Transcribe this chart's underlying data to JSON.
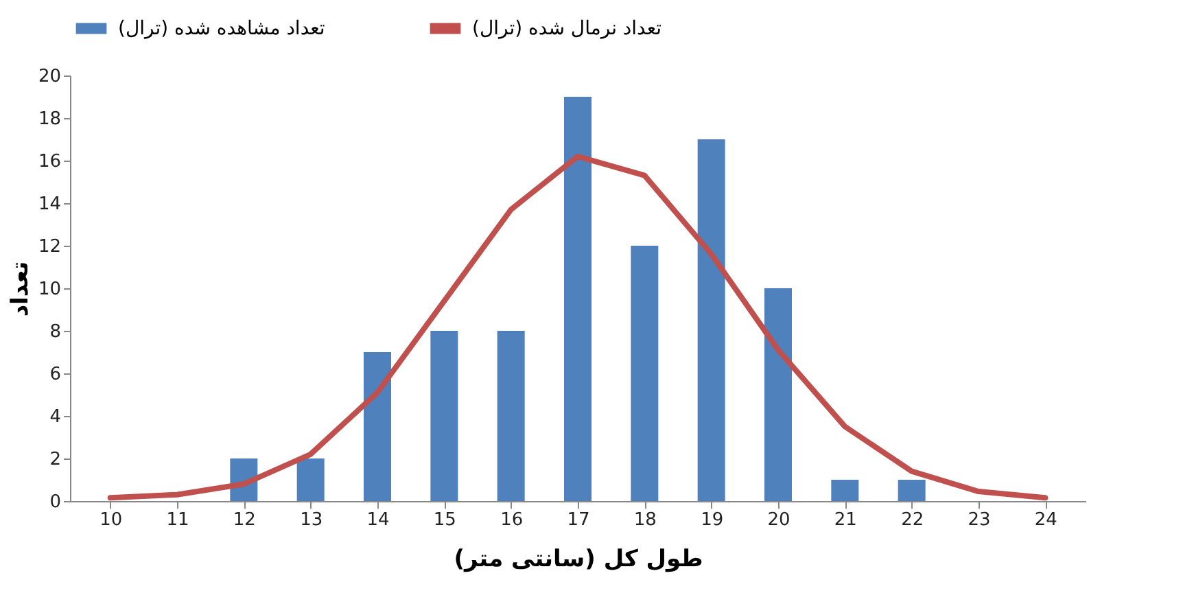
{
  "chart_data": {
    "type": "bar",
    "xlabel": "طول کل (سانتی متر)",
    "ylabel": "تعداد",
    "categories": [
      "10",
      "11",
      "12",
      "13",
      "14",
      "15",
      "16",
      "17",
      "18",
      "19",
      "20",
      "21",
      "22",
      "23",
      "24"
    ],
    "series": [
      {
        "name": "تعداد مشاهده شده (ترال)",
        "color": "#4f81bd",
        "values": [
          0,
          0,
          2,
          2,
          7,
          8,
          8,
          19,
          12,
          17,
          10,
          1,
          1,
          0,
          0
        ]
      },
      {
        "name": "تعداد نرمال شده (ترال)",
        "type": "line",
        "color": "#c0504d",
        "values": [
          0.15,
          0.3,
          0.8,
          2.2,
          5.1,
          9.4,
          13.7,
          16.2,
          15.3,
          11.6,
          7.1,
          3.5,
          1.4,
          0.45,
          0.15
        ]
      }
    ],
    "ylim": [
      0,
      20
    ],
    "yticks": [
      0,
      2,
      4,
      6,
      8,
      10,
      12,
      14,
      16,
      18,
      20
    ],
    "grid": false,
    "legend": "top"
  }
}
